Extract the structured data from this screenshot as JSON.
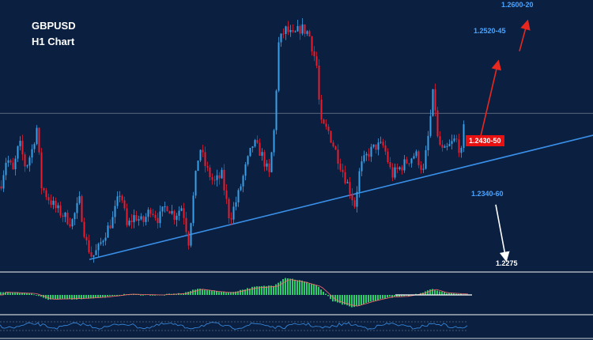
{
  "header": {
    "symbol": "GBPUSD",
    "timeframe": "H1 Chart"
  },
  "levels": {
    "target_top": "1.2600-20",
    "target_mid": "1.2520-45",
    "current": "1.2430-50",
    "support_trend": "1.2340-60",
    "target_bottom": "1.2275"
  },
  "colors": {
    "background": "#0b2040",
    "bull_candle": "#3a9fe6",
    "bear_candle": "#e81d2e",
    "trendline": "#3a8fe8",
    "up_arrow": "#e8281e",
    "down_arrow": "#ffffff",
    "histogram": "#2ecc6a",
    "separator": "#c8cdd4"
  },
  "chart_data": {
    "type": "candlestick",
    "symbol": "GBPUSD",
    "timeframe": "H1",
    "price_range": [
      1.226,
      1.263
    ],
    "horizontal_level": 1.2475,
    "trendline_points": [
      [
        0.0,
        1.2275
      ],
      [
        1.0,
        1.2445
      ]
    ],
    "price_path": [
      [
        0,
        1.2375
      ],
      [
        8,
        1.2415
      ],
      [
        16,
        1.2395
      ],
      [
        24,
        1.2435
      ],
      [
        32,
        1.24
      ],
      [
        40,
        1.2425
      ],
      [
        46,
        1.2455
      ],
      [
        52,
        1.2375
      ],
      [
        60,
        1.236
      ],
      [
        70,
        1.2345
      ],
      [
        80,
        1.2335
      ],
      [
        90,
        1.2325
      ],
      [
        100,
        1.2355
      ],
      [
        108,
        1.23
      ],
      [
        116,
        1.2278
      ],
      [
        124,
        1.229
      ],
      [
        132,
        1.231
      ],
      [
        142,
        1.233
      ],
      [
        152,
        1.237
      ],
      [
        160,
        1.232
      ],
      [
        170,
        1.2335
      ],
      [
        180,
        1.2325
      ],
      [
        190,
        1.2345
      ],
      [
        200,
        1.233
      ],
      [
        210,
        1.235
      ],
      [
        220,
        1.2335
      ],
      [
        230,
        1.2348
      ],
      [
        238,
        1.23
      ],
      [
        246,
        1.238
      ],
      [
        252,
        1.243
      ],
      [
        260,
        1.24
      ],
      [
        270,
        1.238
      ],
      [
        280,
        1.239
      ],
      [
        290,
        1.233
      ],
      [
        300,
        1.236
      ],
      [
        310,
        1.24
      ],
      [
        320,
        1.2435
      ],
      [
        330,
        1.242
      ],
      [
        340,
        1.239
      ],
      [
        346,
        1.245
      ],
      [
        352,
        1.257
      ],
      [
        360,
        1.259
      ],
      [
        370,
        1.258
      ],
      [
        380,
        1.2592
      ],
      [
        390,
        1.2585
      ],
      [
        400,
        1.254
      ],
      [
        405,
        1.246
      ],
      [
        415,
        1.245
      ],
      [
        425,
        1.242
      ],
      [
        435,
        1.239
      ],
      [
        442,
        1.237
      ],
      [
        448,
        1.235
      ],
      [
        455,
        1.24
      ],
      [
        465,
        1.242
      ],
      [
        475,
        1.243
      ],
      [
        485,
        1.243
      ],
      [
        495,
        1.239
      ],
      [
        505,
        1.24
      ],
      [
        515,
        1.241
      ],
      [
        525,
        1.242
      ],
      [
        535,
        1.2395
      ],
      [
        542,
        1.245
      ],
      [
        548,
        1.251
      ],
      [
        553,
        1.244
      ],
      [
        560,
        1.242
      ],
      [
        568,
        1.243
      ],
      [
        576,
        1.244
      ],
      [
        583,
        1.242
      ],
      [
        588,
        1.2475
      ]
    ],
    "projection_up": [
      [
        1.243,
        1.2545
      ],
      [
        1.256,
        1.26
      ]
    ],
    "projection_down": [
      1.235,
      1.2275
    ],
    "annotations": [
      "1.2600-20",
      "1.2520-45",
      "1.2430-50",
      "1.2340-60",
      "1.2275"
    ]
  }
}
